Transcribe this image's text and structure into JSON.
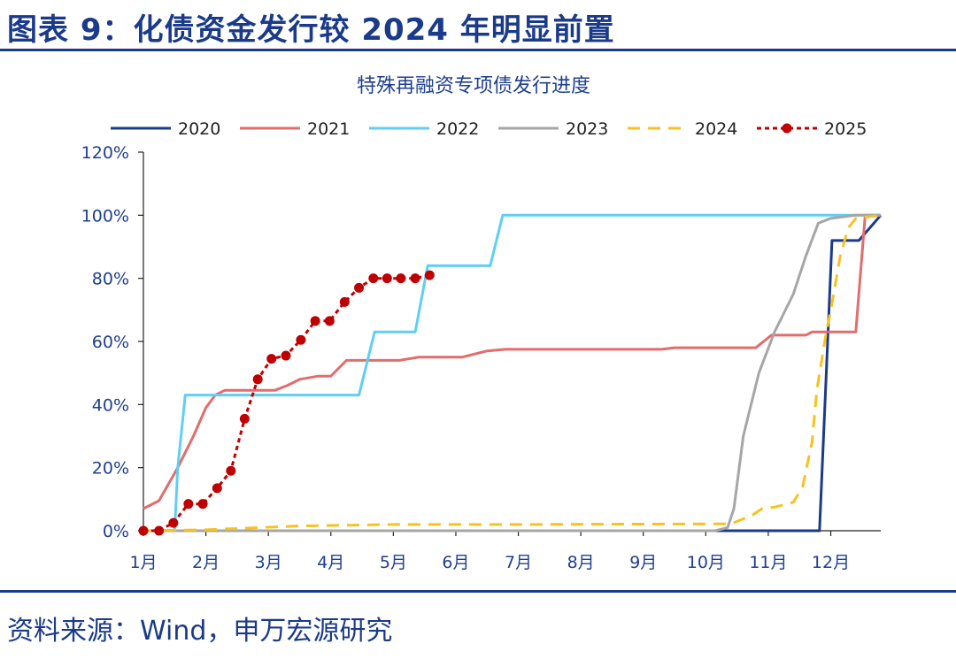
{
  "header": {
    "title": "图表 9：化债资金发行较 2024 年明显前置"
  },
  "footer": {
    "source": "资料来源：Wind，申万宏源研究"
  },
  "chart_data": {
    "type": "line",
    "title": "特殊再融资专项债发行进度",
    "xlabel": "",
    "ylabel": "",
    "x_unit": "month",
    "xlim": [
      1,
      12.8
    ],
    "ylim": [
      0,
      120
    ],
    "x_ticks": [
      1,
      2,
      3,
      4,
      5,
      6,
      7,
      8,
      9,
      10,
      11,
      12
    ],
    "x_tick_labels": [
      "1月",
      "2月",
      "3月",
      "4月",
      "5月",
      "6月",
      "7月",
      "8月",
      "9月",
      "10月",
      "11月",
      "12月"
    ],
    "y_ticks": [
      0,
      20,
      40,
      60,
      80,
      100,
      120
    ],
    "y_tick_labels": [
      "0%",
      "20%",
      "40%",
      "60%",
      "80%",
      "100%",
      "120%"
    ],
    "legend_position": "top",
    "series": [
      {
        "name": "2020",
        "color": "#1a3a8a",
        "style": "solid",
        "points": [
          [
            1,
            0
          ],
          [
            11.82,
            0
          ],
          [
            12.02,
            92
          ],
          [
            12.45,
            92
          ],
          [
            12.8,
            100
          ]
        ]
      },
      {
        "name": "2021",
        "color": "#e36c6c",
        "style": "solid",
        "points": [
          [
            1,
            7
          ],
          [
            1.25,
            9.5
          ],
          [
            1.55,
            20
          ],
          [
            1.8,
            30
          ],
          [
            2.0,
            39
          ],
          [
            2.15,
            43
          ],
          [
            2.3,
            44.5
          ],
          [
            3.1,
            44.5
          ],
          [
            3.3,
            46
          ],
          [
            3.5,
            48
          ],
          [
            3.8,
            49
          ],
          [
            4.0,
            49
          ],
          [
            4.25,
            54
          ],
          [
            5.1,
            54
          ],
          [
            5.4,
            55
          ],
          [
            6.1,
            55
          ],
          [
            6.5,
            57
          ],
          [
            6.8,
            57.5
          ],
          [
            9.3,
            57.5
          ],
          [
            9.5,
            58
          ],
          [
            10.8,
            58
          ],
          [
            11.05,
            62
          ],
          [
            11.6,
            62
          ],
          [
            11.7,
            63
          ],
          [
            12.4,
            63
          ],
          [
            12.55,
            100
          ],
          [
            12.8,
            100
          ]
        ]
      },
      {
        "name": "2022",
        "color": "#5fcff5",
        "style": "solid",
        "points": [
          [
            1,
            0
          ],
          [
            1.5,
            0
          ],
          [
            1.55,
            20
          ],
          [
            1.67,
            43
          ],
          [
            4.45,
            43
          ],
          [
            4.7,
            63
          ],
          [
            5.35,
            63
          ],
          [
            5.55,
            84
          ],
          [
            6.55,
            84
          ],
          [
            6.75,
            100
          ],
          [
            12.8,
            100
          ]
        ]
      },
      {
        "name": "2023",
        "color": "#a6a6a6",
        "style": "solid",
        "points": [
          [
            1,
            0
          ],
          [
            10.15,
            0
          ],
          [
            10.35,
            1
          ],
          [
            10.45,
            7
          ],
          [
            10.6,
            30
          ],
          [
            10.85,
            50
          ],
          [
            11.1,
            63
          ],
          [
            11.4,
            75
          ],
          [
            11.6,
            87
          ],
          [
            11.8,
            97.5
          ],
          [
            12.0,
            99
          ],
          [
            12.4,
            100
          ],
          [
            12.8,
            100
          ]
        ]
      },
      {
        "name": "2024",
        "color": "#f7c221",
        "style": "dashed",
        "points": [
          [
            1,
            0
          ],
          [
            2.0,
            0.3
          ],
          [
            3.5,
            1.5
          ],
          [
            5.0,
            2
          ],
          [
            7.0,
            2
          ],
          [
            10.4,
            2.2
          ],
          [
            10.75,
            5
          ],
          [
            10.9,
            7
          ],
          [
            11.1,
            7.5
          ],
          [
            11.4,
            9
          ],
          [
            11.55,
            14
          ],
          [
            11.7,
            28
          ],
          [
            11.78,
            45
          ],
          [
            11.92,
            62
          ],
          [
            12.02,
            72
          ],
          [
            12.15,
            87
          ],
          [
            12.28,
            96
          ],
          [
            12.4,
            99
          ],
          [
            12.8,
            100
          ]
        ]
      },
      {
        "name": "2025",
        "color": "#c00000",
        "style": "dotted-marker",
        "points": [
          [
            1,
            0
          ],
          [
            1.25,
            0
          ],
          [
            1.48,
            2.5
          ],
          [
            1.72,
            8.5
          ],
          [
            1.95,
            8.5
          ],
          [
            2.18,
            13.5
          ],
          [
            2.4,
            19
          ],
          [
            2.62,
            35.5
          ],
          [
            2.83,
            48
          ],
          [
            3.05,
            54.5
          ],
          [
            3.28,
            55.5
          ],
          [
            3.52,
            60.5
          ],
          [
            3.75,
            66.5
          ],
          [
            3.98,
            66.5
          ],
          [
            4.22,
            72.5
          ],
          [
            4.45,
            77
          ],
          [
            4.68,
            80
          ],
          [
            4.9,
            80
          ],
          [
            5.12,
            80
          ],
          [
            5.35,
            80
          ],
          [
            5.58,
            81
          ]
        ]
      }
    ]
  }
}
